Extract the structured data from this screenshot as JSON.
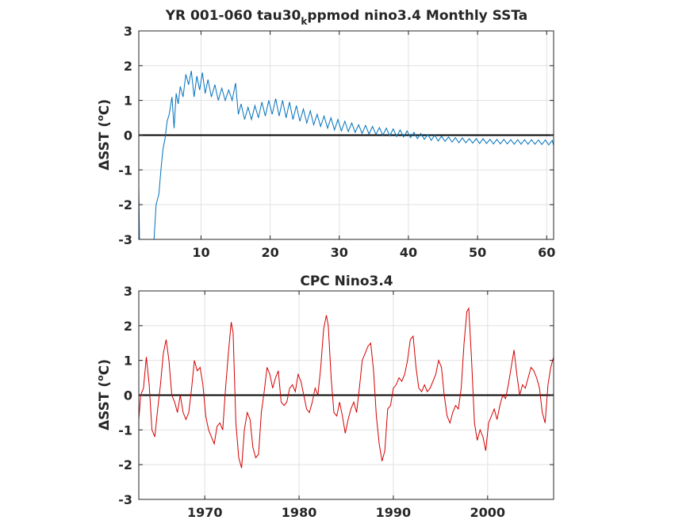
{
  "chart_data": [
    {
      "type": "line",
      "title_main": "YR 001-060 tau30",
      "title_sub": "k",
      "title_rest": "ppmod nino3.4 Monthly SSTa",
      "ylabel": "ΔSST (",
      "ylabel_deg": "o",
      "ylabel_unit": "C)",
      "xlim": [
        1,
        61
      ],
      "ylim": [
        -3,
        3
      ],
      "xticks": [
        10,
        20,
        30,
        40,
        50,
        60
      ],
      "yticks": [
        -3,
        -2,
        -1,
        0,
        1,
        2,
        3
      ],
      "grid": true,
      "zero_line": true,
      "line_color": "#0072BD",
      "series": [
        {
          "shape": "decaying periodic oscillation (annual cycle)",
          "x": [
            1.0,
            1.1,
            1.15,
            3.2,
            3.5,
            3.9,
            4.2,
            4.5,
            4.8,
            5.1,
            5.4,
            5.8,
            6.1,
            6.4,
            6.7,
            7.0,
            7.4,
            7.8,
            8.2,
            8.6,
            9.0,
            9.4,
            9.8,
            10.2,
            10.6,
            11.0,
            11.5,
            12.0,
            12.5,
            13.0,
            13.5,
            14.0,
            14.5,
            15.0,
            15.4,
            15.8,
            16.3,
            16.8,
            17.3,
            17.8,
            18.3,
            18.8,
            19.3,
            19.8,
            20.3,
            20.8,
            21.3,
            21.8,
            22.3,
            22.8,
            23.3,
            23.8,
            24.3,
            24.8,
            25.3,
            25.8,
            26.3,
            26.8,
            27.3,
            27.8,
            28.3,
            28.8,
            29.3,
            29.8,
            30.3,
            30.8,
            31.3,
            31.8,
            32.3,
            32.8,
            33.3,
            33.8,
            34.3,
            34.8,
            35.3,
            35.8,
            36.3,
            36.8,
            37.3,
            37.8,
            38.3,
            38.8,
            39.3,
            39.8,
            40.3,
            40.8,
            41.3,
            41.8,
            42.3,
            42.8,
            43.3,
            43.8,
            44.3,
            44.8,
            45.3,
            45.8,
            46.3,
            46.8,
            47.3,
            47.8,
            48.3,
            48.8,
            49.3,
            49.8,
            50.3,
            50.8,
            51.3,
            51.8,
            52.3,
            52.8,
            53.3,
            53.8,
            54.3,
            54.8,
            55.3,
            55.8,
            56.3,
            56.8,
            57.3,
            57.8,
            58.3,
            58.8,
            59.3,
            59.8,
            60.3,
            60.8,
            61.0
          ],
          "y": [
            -1.45,
            -3.0,
            -3.0,
            -3.0,
            -2.0,
            -1.7,
            -1.0,
            -0.4,
            -0.1,
            0.4,
            0.6,
            1.1,
            0.2,
            1.2,
            0.9,
            1.4,
            1.1,
            1.75,
            1.45,
            1.85,
            1.1,
            1.7,
            1.3,
            1.8,
            1.2,
            1.6,
            1.1,
            1.45,
            1.0,
            1.35,
            1.0,
            1.3,
            1.0,
            1.5,
            0.6,
            0.9,
            0.45,
            0.8,
            0.45,
            0.85,
            0.5,
            0.95,
            0.55,
            1.0,
            0.6,
            1.05,
            0.55,
            1.0,
            0.5,
            0.95,
            0.45,
            0.85,
            0.4,
            0.75,
            0.35,
            0.7,
            0.3,
            0.6,
            0.25,
            0.55,
            0.2,
            0.5,
            0.15,
            0.45,
            0.12,
            0.4,
            0.1,
            0.35,
            0.08,
            0.3,
            0.05,
            0.28,
            0.03,
            0.25,
            0.02,
            0.22,
            0.0,
            0.2,
            -0.02,
            0.18,
            -0.04,
            0.15,
            -0.05,
            0.12,
            -0.07,
            0.08,
            -0.1,
            0.05,
            -0.12,
            0.02,
            -0.15,
            0.0,
            -0.17,
            -0.03,
            -0.18,
            -0.05,
            -0.2,
            -0.07,
            -0.22,
            -0.08,
            -0.22,
            -0.1,
            -0.23,
            -0.1,
            -0.24,
            -0.1,
            -0.24,
            -0.12,
            -0.25,
            -0.12,
            -0.25,
            -0.12,
            -0.25,
            -0.13,
            -0.26,
            -0.13,
            -0.26,
            -0.13,
            -0.26,
            -0.13,
            -0.26,
            -0.14,
            -0.27,
            -0.14,
            -0.28,
            -0.15,
            -0.3
          ]
        }
      ]
    },
    {
      "type": "line",
      "title": "CPC Nino3.4",
      "ylabel": "ΔSST (",
      "ylabel_deg": "o",
      "ylabel_unit": "C)",
      "xlim": [
        1963,
        2007
      ],
      "ylim": [
        -3,
        3
      ],
      "xticks": [
        1970,
        1980,
        1990,
        2000
      ],
      "yticks": [
        -3,
        -2,
        -1,
        0,
        1,
        2,
        3
      ],
      "grid": true,
      "zero_line": true,
      "line_color": "#D40000",
      "series": [
        {
          "x": [
            1963.0,
            1963.2,
            1963.5,
            1963.8,
            1964.1,
            1964.4,
            1964.7,
            1965.0,
            1965.3,
            1965.6,
            1965.9,
            1966.2,
            1966.5,
            1966.8,
            1967.1,
            1967.4,
            1967.7,
            1968.0,
            1968.3,
            1968.6,
            1968.9,
            1969.2,
            1969.5,
            1969.8,
            1970.1,
            1970.4,
            1970.7,
            1971.0,
            1971.3,
            1971.6,
            1971.9,
            1972.2,
            1972.5,
            1972.8,
            1973.0,
            1973.3,
            1973.6,
            1973.9,
            1974.2,
            1974.5,
            1974.8,
            1975.1,
            1975.4,
            1975.7,
            1976.0,
            1976.3,
            1976.6,
            1976.9,
            1977.2,
            1977.5,
            1977.8,
            1978.1,
            1978.4,
            1978.7,
            1979.0,
            1979.3,
            1979.6,
            1979.9,
            1980.2,
            1980.5,
            1980.8,
            1981.1,
            1981.4,
            1981.7,
            1982.0,
            1982.3,
            1982.6,
            1982.9,
            1983.1,
            1983.4,
            1983.7,
            1984.0,
            1984.3,
            1984.6,
            1984.9,
            1985.2,
            1985.5,
            1985.8,
            1986.1,
            1986.4,
            1986.7,
            1987.0,
            1987.3,
            1987.6,
            1987.9,
            1988.2,
            1988.5,
            1988.8,
            1989.1,
            1989.4,
            1989.7,
            1990.0,
            1990.3,
            1990.6,
            1990.9,
            1991.2,
            1991.5,
            1991.8,
            1992.1,
            1992.4,
            1992.7,
            1993.0,
            1993.3,
            1993.6,
            1993.9,
            1994.2,
            1994.5,
            1994.8,
            1995.1,
            1995.4,
            1995.7,
            1996.0,
            1996.3,
            1996.6,
            1996.9,
            1997.2,
            1997.5,
            1997.8,
            1998.0,
            1998.3,
            1998.6,
            1998.9,
            1999.2,
            1999.5,
            1999.8,
            2000.1,
            2000.4,
            2000.7,
            2001.0,
            2001.3,
            2001.6,
            2001.9,
            2002.2,
            2002.5,
            2002.8,
            2003.1,
            2003.4,
            2003.7,
            2004.0,
            2004.3,
            2004.6,
            2004.9,
            2005.2,
            2005.5,
            2005.8,
            2006.1,
            2006.4,
            2006.7,
            2007.0
          ],
          "y": [
            -0.7,
            0.0,
            0.2,
            1.1,
            0.3,
            -1.0,
            -1.2,
            -0.4,
            0.3,
            1.2,
            1.6,
            1.0,
            0.0,
            -0.2,
            -0.5,
            0.0,
            -0.5,
            -0.7,
            -0.5,
            0.2,
            1.0,
            0.7,
            0.8,
            0.3,
            -0.6,
            -1.0,
            -1.2,
            -1.4,
            -0.9,
            -0.8,
            -1.0,
            0.2,
            1.2,
            2.1,
            1.8,
            -0.8,
            -1.8,
            -2.1,
            -1.0,
            -0.5,
            -0.7,
            -1.5,
            -1.8,
            -1.7,
            -0.5,
            0.1,
            0.8,
            0.6,
            0.2,
            0.5,
            0.7,
            -0.2,
            -0.3,
            -0.2,
            0.2,
            0.3,
            0.1,
            0.6,
            0.4,
            0.0,
            -0.4,
            -0.5,
            -0.2,
            0.2,
            0.0,
            0.8,
            1.9,
            2.3,
            2.0,
            0.5,
            -0.5,
            -0.6,
            -0.2,
            -0.6,
            -1.1,
            -0.7,
            -0.4,
            -0.2,
            -0.5,
            0.2,
            1.0,
            1.2,
            1.4,
            1.5,
            0.7,
            -0.6,
            -1.4,
            -1.9,
            -1.6,
            -0.4,
            -0.3,
            0.2,
            0.3,
            0.5,
            0.4,
            0.6,
            1.0,
            1.6,
            1.7,
            0.8,
            0.2,
            0.1,
            0.3,
            0.1,
            0.2,
            0.4,
            0.6,
            1.0,
            0.8,
            0.0,
            -0.6,
            -0.8,
            -0.5,
            -0.3,
            -0.4,
            0.2,
            1.5,
            2.4,
            2.5,
            1.0,
            -0.8,
            -1.3,
            -1.0,
            -1.2,
            -1.6,
            -0.8,
            -0.6,
            -0.4,
            -0.7,
            -0.3,
            0.0,
            -0.1,
            0.3,
            0.8,
            1.3,
            0.6,
            0.0,
            0.3,
            0.2,
            0.5,
            0.8,
            0.7,
            0.5,
            0.2,
            -0.5,
            -0.8,
            0.3,
            0.8,
            1.1
          ]
        }
      ]
    }
  ]
}
